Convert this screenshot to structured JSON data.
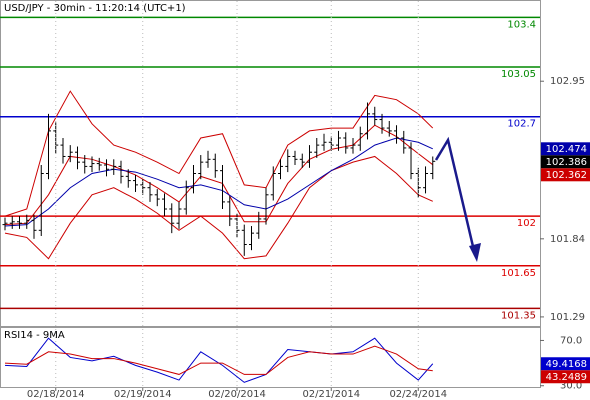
{
  "chart_data": [
    {
      "type": "ohlc",
      "title": "USD/JPY - 30min - 11:20:14 (UTC+1)",
      "x": [
        0,
        1,
        2,
        3,
        4,
        5,
        6,
        7,
        8,
        9,
        10,
        11,
        12,
        13,
        14,
        15,
        16,
        17,
        18,
        19,
        20,
        21,
        22,
        23,
        24,
        25,
        26,
        27,
        28,
        29,
        30,
        31,
        32,
        33,
        34,
        35,
        36,
        37,
        38,
        39,
        40,
        41,
        42,
        43,
        44,
        45,
        46,
        47,
        48,
        49,
        50,
        51,
        52,
        53,
        54,
        55,
        56,
        57,
        58,
        59
      ],
      "open": [
        101.94,
        101.95,
        101.96,
        101.95,
        101.97,
        101.9,
        102.3,
        102.6,
        102.5,
        102.42,
        102.45,
        102.38,
        102.35,
        102.37,
        102.36,
        102.33,
        102.35,
        102.28,
        102.25,
        102.22,
        102.2,
        102.15,
        102.12,
        102.05,
        101.95,
        102.05,
        102.2,
        102.3,
        102.38,
        102.4,
        102.32,
        102.1,
        101.98,
        101.9,
        101.8,
        101.88,
        101.98,
        102.15,
        102.3,
        102.35,
        102.42,
        102.4,
        102.38,
        102.45,
        102.5,
        102.52,
        102.5,
        102.55,
        102.48,
        102.5,
        102.58,
        102.72,
        102.68,
        102.62,
        102.6,
        102.55,
        102.48,
        102.3,
        102.2,
        102.3
      ],
      "high": [
        101.99,
        102.0,
        102.0,
        102.01,
        102.01,
        102.36,
        102.72,
        102.66,
        102.55,
        102.5,
        102.49,
        102.43,
        102.42,
        102.41,
        102.4,
        102.4,
        102.39,
        102.33,
        102.29,
        102.26,
        102.24,
        102.19,
        102.16,
        102.09,
        102.1,
        102.25,
        102.36,
        102.43,
        102.46,
        102.44,
        102.36,
        102.14,
        102.02,
        101.94,
        101.93,
        102.03,
        102.2,
        102.35,
        102.4,
        102.47,
        102.46,
        102.44,
        102.5,
        102.55,
        102.58,
        102.56,
        102.6,
        102.59,
        102.55,
        102.63,
        102.8,
        102.77,
        102.72,
        102.67,
        102.64,
        102.6,
        102.52,
        102.34,
        102.35,
        102.42
      ],
      "low": [
        101.9,
        101.91,
        101.91,
        101.91,
        101.84,
        101.86,
        102.26,
        102.44,
        102.37,
        102.38,
        102.33,
        102.3,
        102.31,
        102.32,
        102.28,
        102.29,
        102.23,
        102.2,
        102.17,
        102.15,
        102.1,
        102.07,
        102.0,
        101.88,
        101.91,
        102.01,
        102.16,
        102.26,
        102.34,
        102.27,
        102.05,
        101.93,
        101.85,
        101.72,
        101.76,
        101.84,
        101.94,
        102.11,
        102.26,
        102.31,
        102.36,
        102.34,
        102.34,
        102.41,
        102.46,
        102.46,
        102.46,
        102.44,
        102.44,
        102.46,
        102.54,
        102.64,
        102.58,
        102.56,
        102.51,
        102.44,
        102.26,
        102.13,
        102.16,
        102.26
      ],
      "close": [
        101.95,
        101.96,
        101.95,
        101.97,
        101.9,
        102.3,
        102.6,
        102.5,
        102.42,
        102.45,
        102.38,
        102.35,
        102.37,
        102.36,
        102.33,
        102.35,
        102.28,
        102.25,
        102.22,
        102.2,
        102.15,
        102.12,
        102.05,
        101.95,
        102.05,
        102.2,
        102.3,
        102.38,
        102.4,
        102.32,
        102.1,
        101.98,
        101.9,
        101.8,
        101.88,
        101.98,
        102.15,
        102.3,
        102.35,
        102.42,
        102.4,
        102.38,
        102.45,
        102.5,
        102.52,
        102.5,
        102.55,
        102.48,
        102.5,
        102.58,
        102.72,
        102.68,
        102.62,
        102.6,
        102.55,
        102.48,
        102.3,
        102.2,
        102.3,
        102.386
      ],
      "bar_color": "#000000",
      "overlays": {
        "x": [
          0,
          3,
          6,
          9,
          12,
          15,
          18,
          21,
          24,
          27,
          30,
          33,
          36,
          39,
          42,
          45,
          48,
          51,
          54,
          57,
          59
        ],
        "upper": {
          "color": "#cc0000",
          "values": [
            102.0,
            102.05,
            102.6,
            102.88,
            102.65,
            102.5,
            102.45,
            102.38,
            102.3,
            102.55,
            102.58,
            102.22,
            102.2,
            102.5,
            102.6,
            102.62,
            102.62,
            102.85,
            102.82,
            102.72,
            102.62
          ]
        },
        "middle": {
          "color": "#cc0000",
          "values": [
            101.94,
            101.95,
            102.15,
            102.42,
            102.4,
            102.35,
            102.29,
            102.2,
            102.1,
            102.28,
            102.23,
            101.96,
            101.96,
            102.23,
            102.4,
            102.47,
            102.5,
            102.64,
            102.56,
            102.44,
            102.362
          ]
        },
        "lower": {
          "color": "#cc0000",
          "values": [
            101.88,
            101.85,
            101.7,
            101.95,
            102.15,
            102.2,
            102.12,
            102.02,
            101.9,
            102.0,
            101.88,
            101.7,
            101.72,
            101.95,
            102.2,
            102.32,
            102.38,
            102.42,
            102.3,
            102.15,
            102.104
          ]
        },
        "ma": {
          "color": "#0000aa",
          "values": [
            101.93,
            101.94,
            102.05,
            102.2,
            102.3,
            102.33,
            102.31,
            102.26,
            102.2,
            102.22,
            102.18,
            102.08,
            102.05,
            102.12,
            102.22,
            102.32,
            102.4,
            102.5,
            102.55,
            102.52,
            102.474
          ]
        }
      },
      "levels": [
        {
          "value": 103.4,
          "color": "#008800"
        },
        {
          "value": 103.05,
          "color": "#008800"
        },
        {
          "value": 102.7,
          "color": "#0000cc"
        },
        {
          "value": 102,
          "color": "#dd0000"
        },
        {
          "value": 101.65,
          "color": "#dd0000"
        },
        {
          "value": 101.35,
          "color": "#aa0000"
        }
      ],
      "close_tag_color": "#000000",
      "xlim": [
        -0.69,
        73.79
      ],
      "ylim": [
        101.226,
        103.522
      ],
      "yticks": [
        102.95,
        101.84,
        101.29
      ]
    },
    {
      "type": "line",
      "title": "RSI14 - 9MA",
      "x": [
        0,
        3,
        6,
        9,
        12,
        15,
        18,
        21,
        24,
        27,
        30,
        33,
        36,
        39,
        42,
        45,
        48,
        51,
        54,
        57,
        59
      ],
      "series": [
        {
          "color": "#0000cc",
          "values": [
            48,
            47,
            72,
            55,
            52,
            56,
            48,
            42,
            35,
            60,
            48,
            33,
            40,
            62,
            60,
            58,
            60,
            72,
            50,
            35,
            49.4168
          ]
        },
        {
          "color": "#cc0000",
          "values": [
            50,
            49,
            60,
            58,
            54,
            54,
            50,
            45,
            40,
            50,
            50,
            40,
            40,
            55,
            60,
            58,
            58,
            65,
            58,
            45,
            43.2489
          ]
        }
      ],
      "xlim": [
        -0.69,
        73.79
      ],
      "ylim": [
        28,
        81
      ],
      "yticks": [
        {
          "value": 70,
          "label": "70.0"
        },
        {
          "value": 30,
          "label": "30.0"
        }
      ],
      "xticks": [
        {
          "value": 7,
          "label": "02/18/2014"
        },
        {
          "value": 19,
          "label": "02/19/2014"
        },
        {
          "value": 32,
          "label": "02/20/2014"
        },
        {
          "value": 45,
          "label": "02/21/2014"
        },
        {
          "value": 57,
          "label": "02/24/2014"
        }
      ]
    }
  ]
}
